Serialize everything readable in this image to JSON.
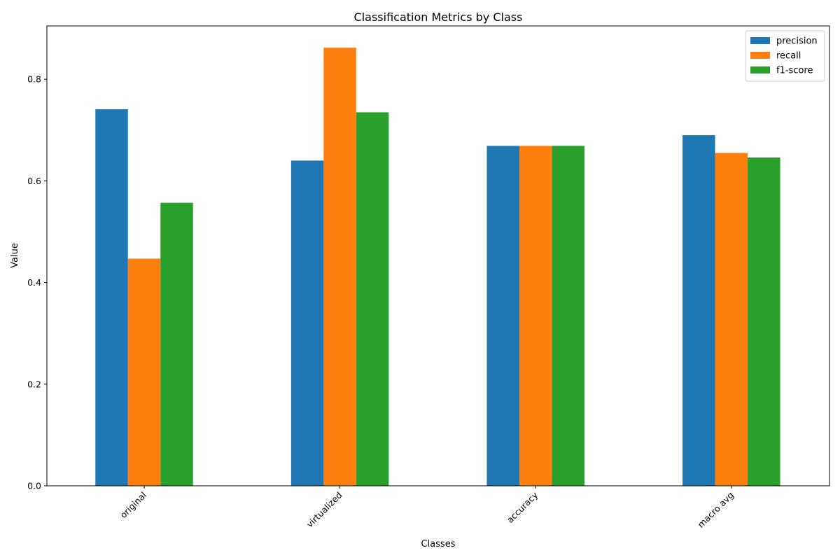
{
  "chart_data": {
    "type": "bar",
    "title": "Classification Metrics by Class",
    "xlabel": "Classes",
    "ylabel": "Value",
    "categories": [
      "original",
      "virtualized",
      "accuracy",
      "macro avg"
    ],
    "series": [
      {
        "name": "precision",
        "color": "#1f77b4",
        "values": [
          0.741,
          0.64,
          0.669,
          0.69
        ]
      },
      {
        "name": "recall",
        "color": "#ff7f0e",
        "values": [
          0.447,
          0.862,
          0.669,
          0.655
        ]
      },
      {
        "name": "f1-score",
        "color": "#2ca02c",
        "values": [
          0.557,
          0.735,
          0.669,
          0.646
        ]
      }
    ],
    "ylim": [
      0,
      0.905
    ],
    "yticks": [
      "0.0",
      "0.2",
      "0.4",
      "0.6",
      "0.8"
    ],
    "grid": false,
    "legend_position": "top-right"
  }
}
